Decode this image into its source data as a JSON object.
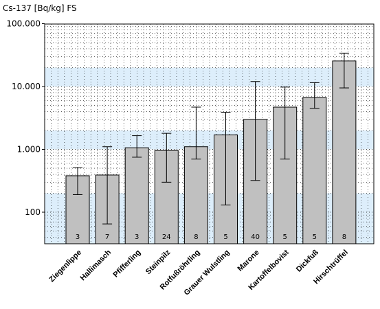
{
  "chart_data": {
    "type": "bar",
    "ylabel": "Cs-137 [Bq/kg] FS",
    "yscale": "log",
    "ylim": [
      30,
      100000
    ],
    "yticks": [
      100,
      1000,
      10000,
      100000
    ],
    "ytick_labels": [
      "100",
      "1.000",
      "10.000",
      "100.000"
    ],
    "grid": true,
    "categories": [
      "Ziegenlippe",
      "Hallimasch",
      "Pfifferling",
      "Steinpilz",
      "Rotfußröhrling",
      "Grauer Wulstling",
      "Marone",
      "Kartoffelbovist",
      "Dickfuß",
      "Hirschtrüffel"
    ],
    "values": [
      380,
      390,
      1060,
      960,
      1100,
      1700,
      3000,
      4700,
      6700,
      25500
    ],
    "error_low": [
      190,
      65,
      750,
      300,
      700,
      130,
      320,
      700,
      4500,
      9500
    ],
    "error_high": [
      510,
      1100,
      1650,
      1800,
      4700,
      3900,
      12000,
      9800,
      11500,
      34000
    ],
    "n_labels": [
      "3",
      "7",
      "3",
      "24",
      "8",
      "5",
      "40",
      "5",
      "5",
      "8"
    ],
    "colors": {
      "plot_bg": "#ddeefb",
      "band_bg": "#ffffff",
      "bar_fill": "#c0c0c0",
      "bar_stroke": "#000000"
    }
  }
}
